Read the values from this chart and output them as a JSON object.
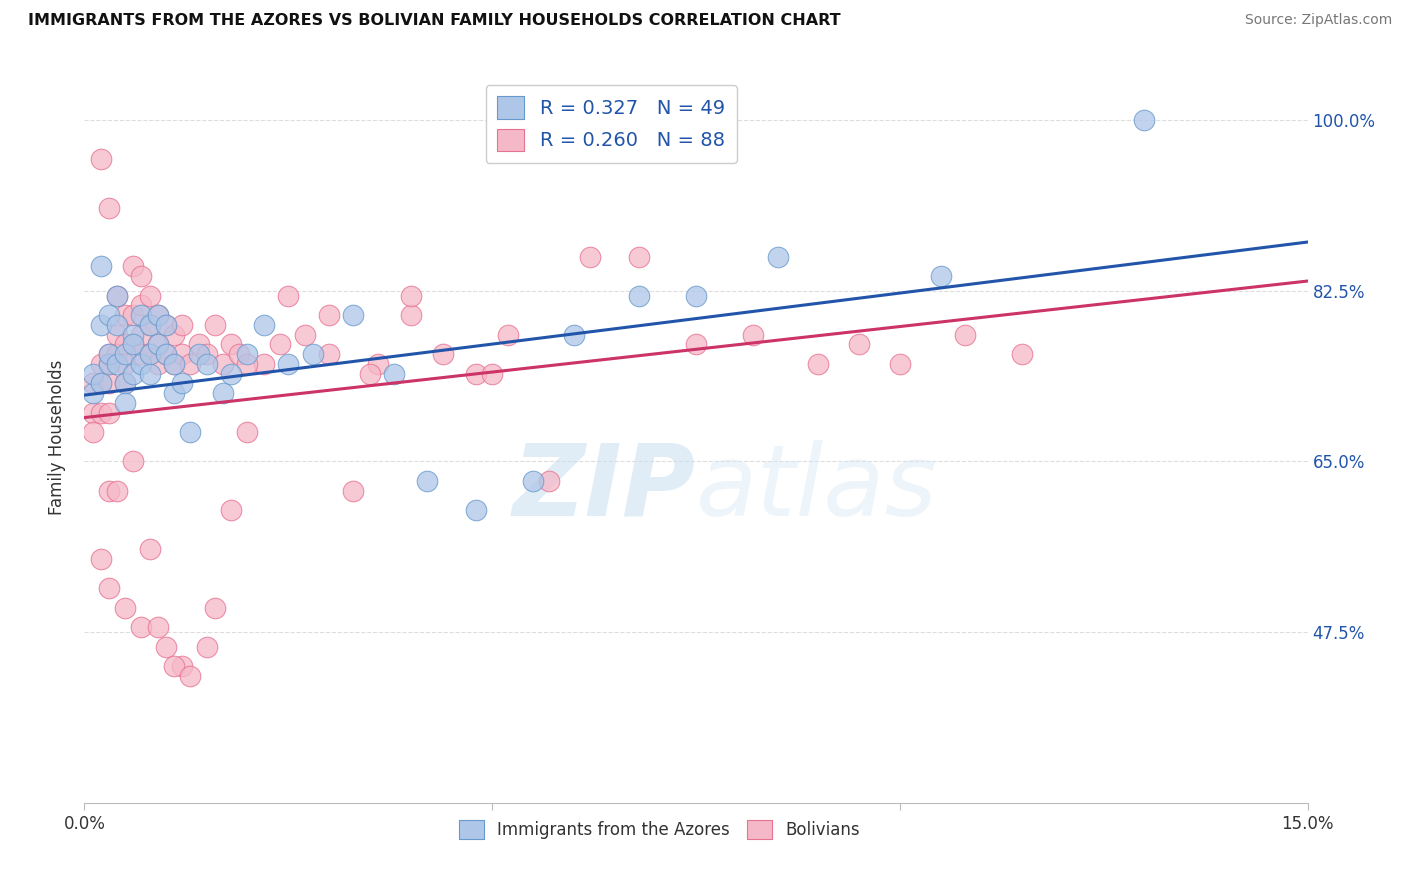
{
  "title": "IMMIGRANTS FROM THE AZORES VS BOLIVIAN FAMILY HOUSEHOLDS CORRELATION CHART",
  "source": "Source: ZipAtlas.com",
  "ylabel": "Family Households",
  "xlim": [
    0.0,
    0.15
  ],
  "ylim": [
    0.3,
    1.05
  ],
  "xticks": [
    0.0,
    0.05,
    0.1,
    0.15
  ],
  "xticklabels": [
    "0.0%",
    "",
    "",
    "15.0%"
  ],
  "yticks": [
    0.475,
    0.65,
    0.825,
    1.0
  ],
  "yticklabels": [
    "47.5%",
    "65.0%",
    "82.5%",
    "100.0%"
  ],
  "blue_R": 0.327,
  "blue_N": 49,
  "pink_R": 0.26,
  "pink_N": 88,
  "blue_fill": "#aec6e8",
  "pink_fill": "#f5b8c8",
  "blue_edge": "#6699cc",
  "pink_edge": "#e87090",
  "blue_line": "#2255aa",
  "pink_line": "#cc3366",
  "legend_text_color": "#2255aa",
  "blue_scatter_x": [
    0.001,
    0.001,
    0.002,
    0.002,
    0.002,
    0.003,
    0.003,
    0.003,
    0.004,
    0.004,
    0.004,
    0.005,
    0.005,
    0.005,
    0.006,
    0.006,
    0.006,
    0.007,
    0.007,
    0.008,
    0.008,
    0.008,
    0.009,
    0.009,
    0.01,
    0.01,
    0.011,
    0.011,
    0.012,
    0.013,
    0.014,
    0.015,
    0.017,
    0.018,
    0.02,
    0.022,
    0.025,
    0.028,
    0.033,
    0.038,
    0.042,
    0.048,
    0.055,
    0.06,
    0.068,
    0.075,
    0.085,
    0.105,
    0.13
  ],
  "blue_scatter_y": [
    0.72,
    0.74,
    0.79,
    0.73,
    0.85,
    0.75,
    0.8,
    0.76,
    0.82,
    0.75,
    0.79,
    0.73,
    0.76,
    0.71,
    0.78,
    0.74,
    0.77,
    0.8,
    0.75,
    0.79,
    0.76,
    0.74,
    0.8,
    0.77,
    0.76,
    0.79,
    0.75,
    0.72,
    0.73,
    0.68,
    0.76,
    0.75,
    0.72,
    0.74,
    0.76,
    0.79,
    0.75,
    0.76,
    0.8,
    0.74,
    0.63,
    0.6,
    0.63,
    0.78,
    0.82,
    0.82,
    0.86,
    0.84,
    1.0
  ],
  "pink_scatter_x": [
    0.001,
    0.001,
    0.001,
    0.002,
    0.002,
    0.002,
    0.002,
    0.003,
    0.003,
    0.003,
    0.003,
    0.003,
    0.004,
    0.004,
    0.004,
    0.005,
    0.005,
    0.005,
    0.005,
    0.006,
    0.006,
    0.006,
    0.007,
    0.007,
    0.007,
    0.007,
    0.008,
    0.008,
    0.008,
    0.009,
    0.009,
    0.009,
    0.01,
    0.01,
    0.011,
    0.011,
    0.012,
    0.012,
    0.013,
    0.014,
    0.015,
    0.016,
    0.017,
    0.018,
    0.019,
    0.02,
    0.022,
    0.024,
    0.027,
    0.03,
    0.033,
    0.036,
    0.04,
    0.044,
    0.048,
    0.052,
    0.057,
    0.062,
    0.068,
    0.075,
    0.082,
    0.09,
    0.095,
    0.1,
    0.108,
    0.115,
    0.003,
    0.004,
    0.006,
    0.008,
    0.01,
    0.012,
    0.015,
    0.018,
    0.02,
    0.002,
    0.003,
    0.005,
    0.007,
    0.009,
    0.011,
    0.013,
    0.016,
    0.025,
    0.03,
    0.035,
    0.04,
    0.05
  ],
  "pink_scatter_y": [
    0.73,
    0.7,
    0.68,
    0.96,
    0.75,
    0.73,
    0.7,
    0.91,
    0.76,
    0.75,
    0.73,
    0.7,
    0.82,
    0.78,
    0.76,
    0.8,
    0.77,
    0.75,
    0.73,
    0.85,
    0.8,
    0.77,
    0.84,
    0.81,
    0.78,
    0.76,
    0.82,
    0.79,
    0.76,
    0.8,
    0.77,
    0.75,
    0.79,
    0.76,
    0.78,
    0.75,
    0.79,
    0.76,
    0.75,
    0.77,
    0.76,
    0.79,
    0.75,
    0.77,
    0.76,
    0.68,
    0.75,
    0.77,
    0.78,
    0.8,
    0.62,
    0.75,
    0.8,
    0.76,
    0.74,
    0.78,
    0.63,
    0.86,
    0.86,
    0.77,
    0.78,
    0.75,
    0.77,
    0.75,
    0.78,
    0.76,
    0.62,
    0.62,
    0.65,
    0.56,
    0.46,
    0.44,
    0.46,
    0.6,
    0.75,
    0.55,
    0.52,
    0.5,
    0.48,
    0.48,
    0.44,
    0.43,
    0.5,
    0.82,
    0.76,
    0.74,
    0.82,
    0.74
  ],
  "blue_line_x0": 0.0,
  "blue_line_y0": 0.718,
  "blue_line_x1": 0.15,
  "blue_line_y1": 0.875,
  "pink_line_x0": 0.0,
  "pink_line_y0": 0.695,
  "pink_line_x1": 0.15,
  "pink_line_y1": 0.835,
  "watermark_zip": "ZIP",
  "watermark_atlas": "atlas",
  "background_color": "#ffffff",
  "grid_color": "#dddddd",
  "tick_color": "#bbbbbb"
}
